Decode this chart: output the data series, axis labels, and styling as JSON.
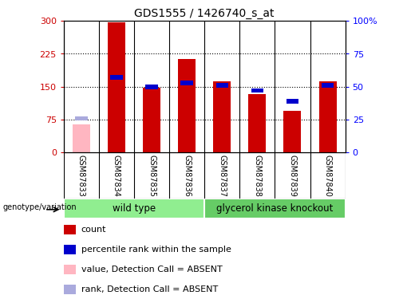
{
  "title": "GDS1555 / 1426740_s_at",
  "samples": [
    "GSM87833",
    "GSM87834",
    "GSM87835",
    "GSM87836",
    "GSM87837",
    "GSM87838",
    "GSM87839",
    "GSM87840"
  ],
  "count_values": [
    65,
    296,
    148,
    213,
    162,
    133,
    95,
    163
  ],
  "percentile_values": [
    26,
    57,
    50,
    53,
    51,
    47,
    39,
    51
  ],
  "absent_flags": [
    true,
    false,
    false,
    false,
    false,
    false,
    false,
    false
  ],
  "groups": [
    {
      "label": "wild type",
      "start": 0,
      "end": 4,
      "color": "#90EE90"
    },
    {
      "label": "glycerol kinase knockout",
      "start": 4,
      "end": 8,
      "color": "#66CC66"
    }
  ],
  "ylim_left": [
    0,
    300
  ],
  "ylim_right": [
    0,
    100
  ],
  "yticks_left": [
    0,
    75,
    150,
    225,
    300
  ],
  "ytick_labels_left": [
    "0",
    "75",
    "150",
    "225",
    "300"
  ],
  "yticks_right": [
    0,
    25,
    50,
    75,
    100
  ],
  "ytick_labels_right": [
    "0",
    "25",
    "50",
    "75",
    "100%"
  ],
  "red_color": "#CC0000",
  "pink_color": "#FFB6C1",
  "blue_color": "#0000CC",
  "lightblue_color": "#AAAADD",
  "xtick_bg": "#D3D3D3",
  "legend_items": [
    "count",
    "percentile rank within the sample",
    "value, Detection Call = ABSENT",
    "rank, Detection Call = ABSENT"
  ],
  "genotype_label": "genotype/variation"
}
